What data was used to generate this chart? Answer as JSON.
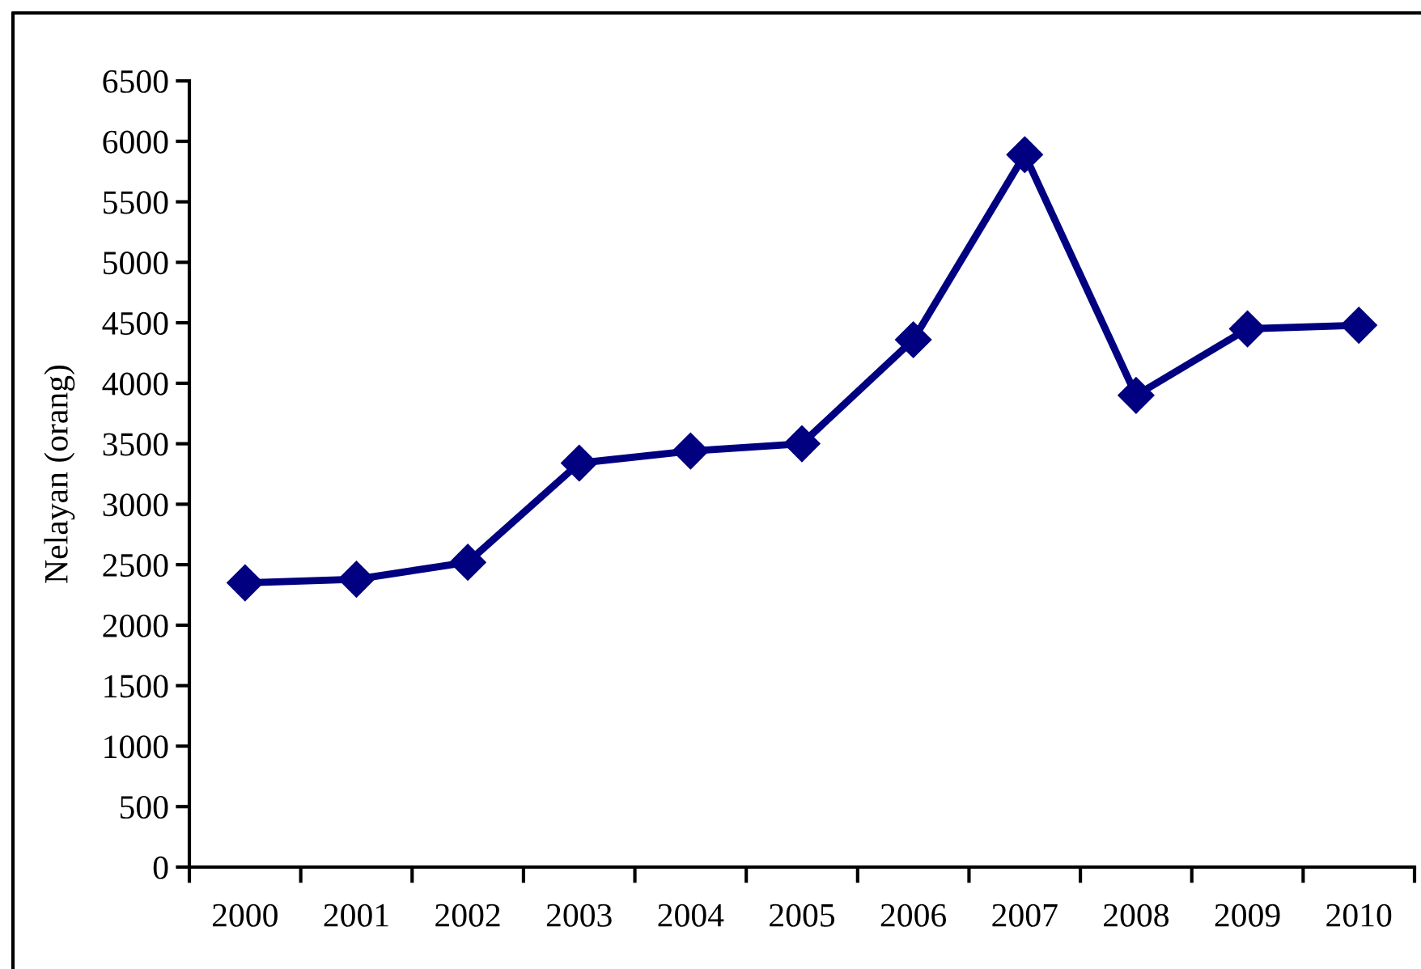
{
  "chart_data": {
    "type": "line",
    "ylabel": "Nelayan (orang)",
    "categories": [
      "2000",
      "2001",
      "2002",
      "2003",
      "2004",
      "2005",
      "2006",
      "2007",
      "2008",
      "2009",
      "2010"
    ],
    "series": [
      {
        "color": "#000080",
        "values": [
          2350,
          2380,
          2520,
          3340,
          3440,
          3500,
          4360,
          5890,
          3900,
          4450,
          4480
        ]
      }
    ],
    "ylim": [
      0,
      6500
    ],
    "yticks": [
      0,
      500,
      1000,
      1500,
      2000,
      2500,
      3000,
      3500,
      4000,
      4500,
      5000,
      5500,
      6000,
      6500
    ],
    "grid": false,
    "marker": "diamond",
    "line_style": "solid"
  }
}
